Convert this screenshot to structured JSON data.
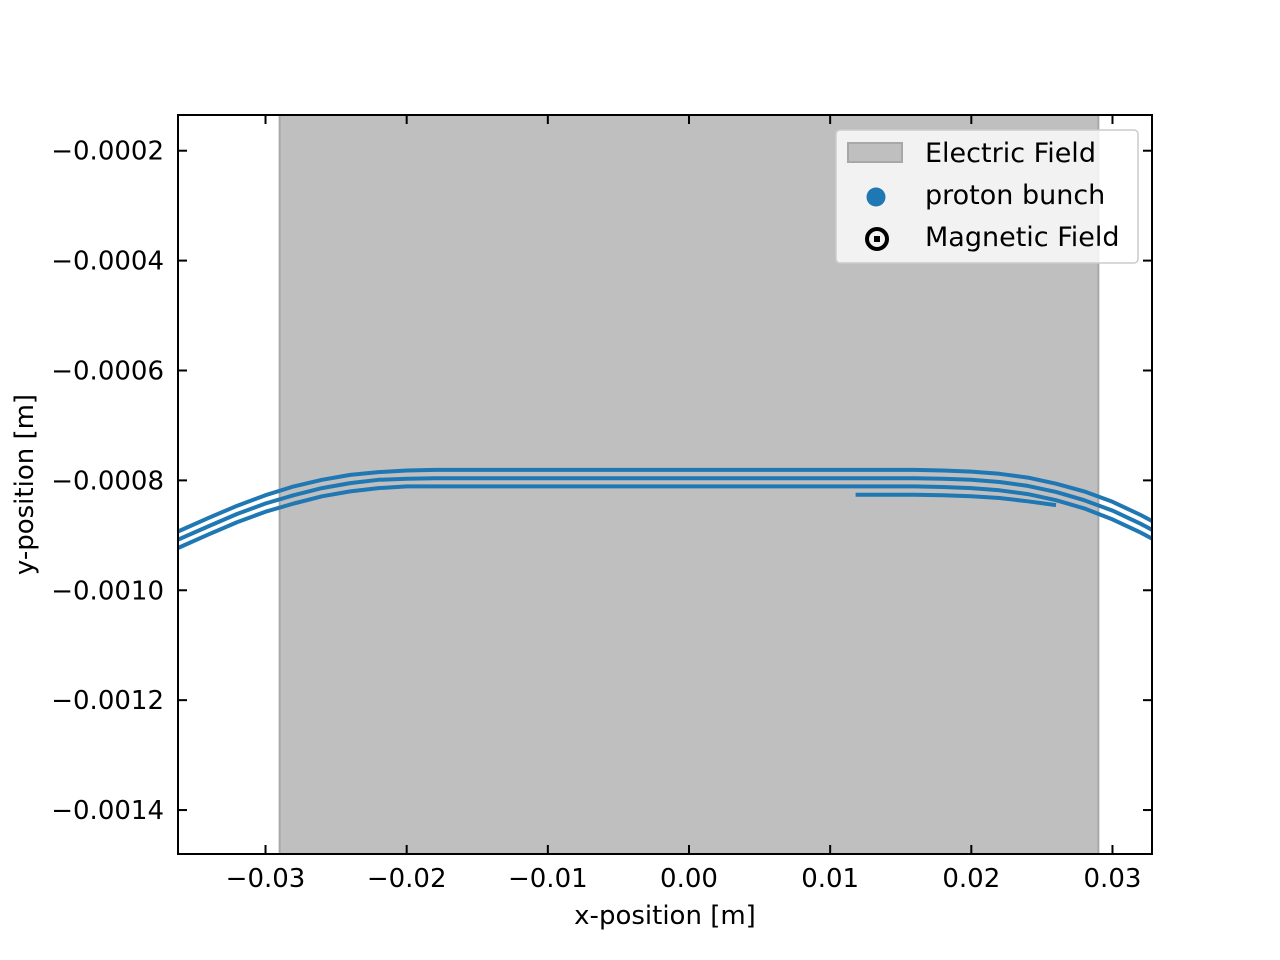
{
  "chart_data": {
    "type": "line",
    "title": "",
    "xlabel": "x-position [m]",
    "ylabel": "y-position [m]",
    "xlim": [
      -0.0362,
      0.0328
    ],
    "ylim": [
      -0.00148,
      -0.000135
    ],
    "grid": false,
    "legend_position": "top-right",
    "x_ticks": [
      -0.03,
      -0.02,
      -0.01,
      0.0,
      0.01,
      0.02,
      0.03
    ],
    "x_tick_labels": [
      "−0.03",
      "−0.02",
      "−0.01",
      "0.00",
      "0.01",
      "0.02",
      "0.03"
    ],
    "y_ticks": [
      -0.0002,
      -0.0004,
      -0.0006,
      -0.0008,
      -0.001,
      -0.0012,
      -0.0014
    ],
    "y_tick_labels": [
      "−0.0002",
      "−0.0004",
      "−0.0006",
      "−0.0008",
      "−0.0010",
      "−0.0012",
      "−0.0014"
    ],
    "electric_field_region": {
      "x": [
        -0.029,
        0.029
      ],
      "color": "#bfbfbf",
      "edge_color": "#a8a8a8"
    },
    "series_color": "#1f77b4",
    "trajectories": [
      {
        "x": [
          -0.0362,
          -0.034,
          -0.032,
          -0.03,
          -0.028,
          -0.026,
          -0.024,
          -0.022,
          -0.02,
          -0.018,
          -0.016,
          0.0,
          0.016,
          0.018,
          0.02,
          0.022,
          0.024,
          0.026,
          0.028,
          0.03,
          0.032,
          0.0328
        ],
        "y": [
          -0.000893,
          -0.000868,
          -0.000846,
          -0.000827,
          -0.000811,
          -0.000799,
          -0.00079,
          -0.000785,
          -0.000782,
          -0.000781,
          -0.000781,
          -0.000781,
          -0.000781,
          -0.000782,
          -0.000784,
          -0.000788,
          -0.000795,
          -0.000806,
          -0.00082,
          -0.000839,
          -0.000863,
          -0.000874
        ]
      },
      {
        "x": [
          -0.0362,
          -0.034,
          -0.032,
          -0.03,
          -0.028,
          -0.026,
          -0.024,
          -0.022,
          -0.02,
          -0.018,
          -0.016,
          0.0,
          0.016,
          0.018,
          0.02,
          0.022,
          0.024,
          0.026,
          0.028,
          0.03,
          0.032,
          0.0328
        ],
        "y": [
          -0.000908,
          -0.000883,
          -0.000861,
          -0.000842,
          -0.000827,
          -0.000814,
          -0.000805,
          -0.000799,
          -0.000797,
          -0.000796,
          -0.000796,
          -0.000796,
          -0.000796,
          -0.000797,
          -0.000799,
          -0.000803,
          -0.00081,
          -0.000821,
          -0.000836,
          -0.000855,
          -0.000879,
          -0.00089
        ]
      },
      {
        "x": [
          -0.0362,
          -0.034,
          -0.032,
          -0.03,
          -0.028,
          -0.026,
          -0.024,
          -0.022,
          -0.02,
          -0.018,
          -0.016,
          0.0,
          0.016,
          0.018,
          0.02,
          0.022,
          0.024,
          0.026,
          0.028,
          0.03,
          0.032,
          0.0328
        ],
        "y": [
          -0.000923,
          -0.000898,
          -0.000876,
          -0.000857,
          -0.000842,
          -0.000829,
          -0.00082,
          -0.000814,
          -0.000811,
          -0.000811,
          -0.000811,
          -0.000811,
          -0.000811,
          -0.000812,
          -0.000814,
          -0.000818,
          -0.000825,
          -0.000836,
          -0.000851,
          -0.000871,
          -0.000895,
          -0.000906
        ]
      },
      {
        "x": [
          0.0118,
          0.016,
          0.018,
          0.02,
          0.022,
          0.024,
          0.026
        ],
        "y": [
          -0.000826,
          -0.000826,
          -0.000827,
          -0.000829,
          -0.000832,
          -0.000838,
          -0.000845
        ]
      }
    ],
    "legend": [
      {
        "label": "Electric Field",
        "marker": "patch"
      },
      {
        "label": "proton bunch",
        "marker": "dot"
      },
      {
        "label": "Magnetic Field",
        "marker": "out-of-page-symbol"
      }
    ]
  }
}
